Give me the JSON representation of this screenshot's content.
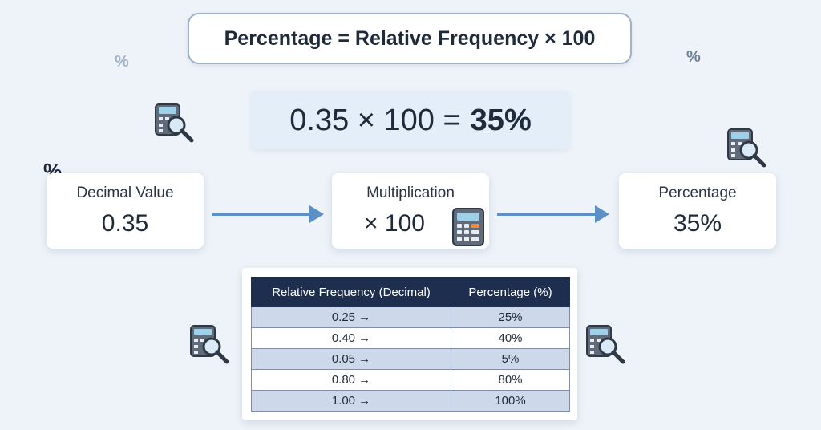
{
  "formula": "Percentage = Relative Frequency × 100",
  "example": {
    "left": "0.35 × 100 =",
    "result": "35%"
  },
  "flow": [
    {
      "title": "Decimal Value",
      "value": "0.35"
    },
    {
      "title": "Multiplication",
      "value": "× 100"
    },
    {
      "title": "Percentage",
      "value": "35%"
    }
  ],
  "decorations": {
    "percent_symbol": "%"
  },
  "table": {
    "headers": [
      "Relative Frequency (Decimal)",
      "Percentage (%)"
    ],
    "rows": [
      {
        "decimal": "0.25  →",
        "percent": "25%"
      },
      {
        "decimal": "0.40  →",
        "percent": "40%"
      },
      {
        "decimal": "0.05  →",
        "percent": "5%"
      },
      {
        "decimal": "0.80  →",
        "percent": "80%"
      },
      {
        "decimal": "1.00  →",
        "percent": "100%"
      }
    ]
  },
  "colors": {
    "background": "#eef3f9",
    "header_bg": "#1e2e4f",
    "stripe": "#cdd9ea",
    "arrow": "#5b8fc6"
  },
  "icons": [
    "calculator-magnifier-icon",
    "calculator-icon",
    "percent-sign"
  ]
}
